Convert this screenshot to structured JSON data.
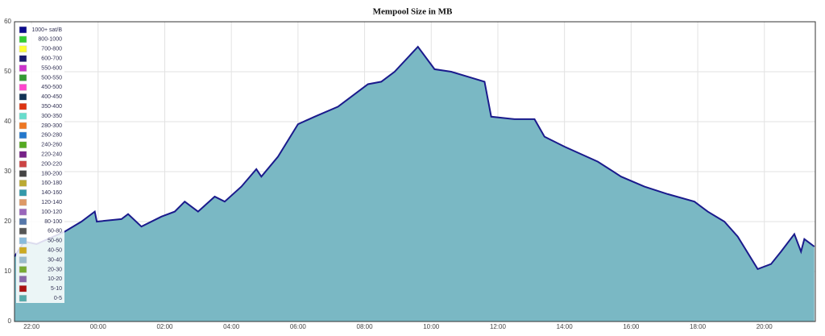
{
  "chart_data": {
    "type": "area",
    "title": "Mempool Size in MB",
    "x": [
      -0.51,
      -0.22,
      0.15,
      1.0,
      1.5,
      1.9,
      1.96,
      2.7,
      2.9,
      3.3,
      3.9,
      4.3,
      4.6,
      5.0,
      5.5,
      5.8,
      6.3,
      6.75,
      6.9,
      7.4,
      8.0,
      8.5,
      9.2,
      10.1,
      10.5,
      10.9,
      11.6,
      12.1,
      12.6,
      13.1,
      13.6,
      13.8,
      14.5,
      15.1,
      15.4,
      16.0,
      17.0,
      17.7,
      18.4,
      19.1,
      19.9,
      20.3,
      20.8,
      21.2,
      21.8,
      22.2,
      22.5,
      22.9,
      23.1,
      23.2,
      23.5
    ],
    "values": [
      13,
      16,
      15.5,
      18,
      20,
      22,
      20,
      20.5,
      21.5,
      19,
      21,
      22,
      24,
      22,
      25,
      24,
      27,
      30.5,
      29,
      33,
      39.5,
      41,
      43,
      47.5,
      48,
      50,
      55,
      50.5,
      50,
      49,
      48,
      41,
      40.5,
      40.5,
      37,
      35,
      32,
      29,
      27,
      25.5,
      24,
      22,
      20,
      17,
      10.5,
      11.5,
      14,
      17.5,
      14,
      16.5,
      15
    ],
    "fill": "#7ab8c4",
    "line_color": "#1a1a8c",
    "xlim": [
      -0.51,
      23.53
    ],
    "xticks": [
      {
        "value": 0,
        "label": "22:00"
      },
      {
        "value": 2,
        "label": "00:00"
      },
      {
        "value": 4,
        "label": "02:00"
      },
      {
        "value": 6,
        "label": "04:00"
      },
      {
        "value": 8,
        "label": "06:00"
      },
      {
        "value": 10,
        "label": "08:00"
      },
      {
        "value": 12,
        "label": "10:00"
      },
      {
        "value": 14,
        "label": "12:00"
      },
      {
        "value": 16,
        "label": "14:00"
      },
      {
        "value": 18,
        "label": "16:00"
      },
      {
        "value": 20,
        "label": "18:00"
      },
      {
        "value": 22,
        "label": "20:00"
      }
    ],
    "ylim": [
      0,
      60
    ],
    "yticks": [
      0,
      10,
      20,
      30,
      40,
      50,
      60
    ],
    "grid": true,
    "legend": [
      {
        "name": "1000+ sat/B",
        "color": "#0a0a8c"
      },
      {
        "name": "800-1000",
        "color": "#33cc33"
      },
      {
        "name": "700-800",
        "color": "#ffff33"
      },
      {
        "name": "600-700",
        "color": "#1a1a6e"
      },
      {
        "name": "550-600",
        "color": "#cc33cc"
      },
      {
        "name": "500-550",
        "color": "#339933"
      },
      {
        "name": "450-500",
        "color": "#ff44cc"
      },
      {
        "name": "400-450",
        "color": "#113355"
      },
      {
        "name": "350-400",
        "color": "#dd3311"
      },
      {
        "name": "300-350",
        "color": "#66ddcc"
      },
      {
        "name": "280-300",
        "color": "#ee7722"
      },
      {
        "name": "260-280",
        "color": "#2277cc"
      },
      {
        "name": "240-260",
        "color": "#55aa22"
      },
      {
        "name": "220-240",
        "color": "#772288"
      },
      {
        "name": "200-220",
        "color": "#cc4444"
      },
      {
        "name": "180-200",
        "color": "#444444"
      },
      {
        "name": "160-180",
        "color": "#bbaa33"
      },
      {
        "name": "140-160",
        "color": "#3399aa"
      },
      {
        "name": "120-140",
        "color": "#dd9966"
      },
      {
        "name": "100-120",
        "color": "#9966bb"
      },
      {
        "name": "80-100",
        "color": "#5577aa"
      },
      {
        "name": "60-80",
        "color": "#555555"
      },
      {
        "name": "50-60",
        "color": "#88bbdd"
      },
      {
        "name": "40-50",
        "color": "#ccaa22"
      },
      {
        "name": "30-40",
        "color": "#99bbcc"
      },
      {
        "name": "20-30",
        "color": "#77aa33"
      },
      {
        "name": "10-20",
        "color": "#8866aa"
      },
      {
        "name": "5-10",
        "color": "#aa1111"
      },
      {
        "name": "0-5",
        "color": "#55aaaa"
      }
    ]
  }
}
